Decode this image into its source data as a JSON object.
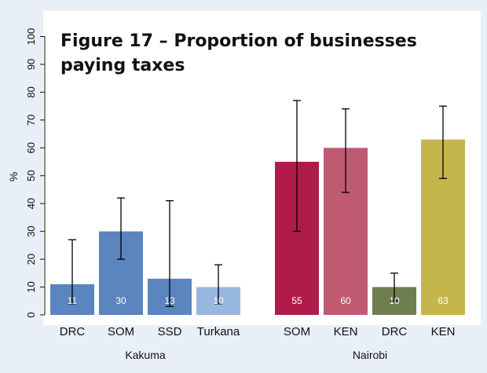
{
  "chart_data": {
    "type": "bar",
    "title_lines": [
      "Figure 17 – Proportion of businesses",
      "paying taxes"
    ],
    "ylabel": "%",
    "xlabel": "",
    "ylim": [
      0,
      100
    ],
    "yticks": [
      0,
      10,
      20,
      30,
      40,
      50,
      60,
      70,
      80,
      90,
      100
    ],
    "grid": false,
    "groups": [
      {
        "name": "Kakuma",
        "bars": [
          {
            "label": "DRC",
            "value": 11,
            "ci": [
              4,
              27
            ],
            "color": "#5a85be"
          },
          {
            "label": "SOM",
            "value": 30,
            "ci": [
              20,
              42
            ],
            "color": "#5a85be"
          },
          {
            "label": "SSD",
            "value": 13,
            "ci": [
              3,
              41
            ],
            "color": "#5a85be"
          },
          {
            "label": "Turkana",
            "value": 10,
            "ci": [
              4,
              18
            ],
            "color": "#98b7de"
          }
        ]
      },
      {
        "name": "Nairobi",
        "bars": [
          {
            "label": "SOM",
            "value": 55,
            "ci": [
              30,
              77
            ],
            "color": "#b01c4a"
          },
          {
            "label": "KEN",
            "value": 60,
            "ci": [
              44,
              74
            ],
            "color": "#bf5a72"
          },
          {
            "label": "DRC",
            "value": 10,
            "ci": [
              5,
              15
            ],
            "color": "#6f7e4e"
          },
          {
            "label": "KEN",
            "value": 63,
            "ci": [
              49,
              75
            ],
            "color": "#c5b64c"
          }
        ]
      }
    ]
  }
}
